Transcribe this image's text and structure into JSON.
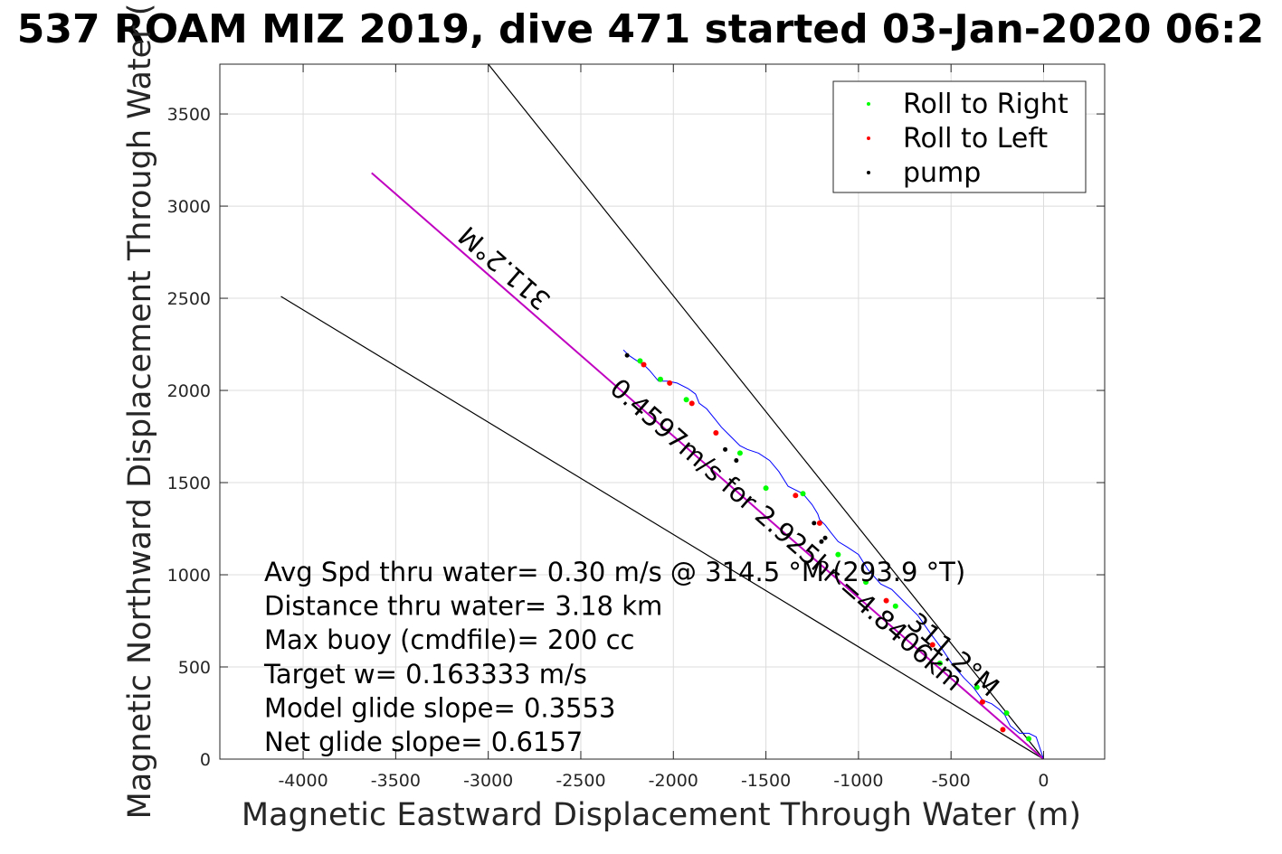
{
  "chart_data": {
    "type": "line",
    "title": "537 ROAM MIZ 2019, dive 471 started 03-Jan-2020 06:2",
    "xlabel": "Magnetic Eastward Displacement Through Water (m)",
    "ylabel": "Magnetic Northward Displacement Through Water (",
    "xlim": [
      -4450,
      330
    ],
    "ylim": [
      0,
      3770
    ],
    "xticks": [
      -4000,
      -3500,
      -3000,
      -2500,
      -2000,
      -1500,
      -1000,
      -500,
      0
    ],
    "xtick_labels": [
      "-4000",
      "-3500",
      "-3000",
      "-2500",
      "-2000",
      "-1500",
      "-1000",
      "-500",
      "0"
    ],
    "yticks": [
      0,
      500,
      1000,
      1500,
      2000,
      2500,
      3000,
      3500
    ],
    "ytick_labels": [
      "0",
      "500",
      "1000",
      "1500",
      "2000",
      "2500",
      "3000",
      "3500"
    ],
    "grid": true,
    "legend_position": "top-right",
    "legend": [
      {
        "label": "Roll to Right",
        "color": "#00ff00"
      },
      {
        "label": "Roll to Left",
        "color": "#ff0000"
      },
      {
        "label": "pump",
        "color": "#000000"
      }
    ],
    "lines": [
      {
        "kind": "black",
        "x": [
          0,
          -3000
        ],
        "y": [
          0,
          3770
        ]
      },
      {
        "kind": "black",
        "x": [
          0,
          -4120
        ],
        "y": [
          0,
          2510
        ]
      },
      {
        "kind": "magenta",
        "x": [
          0,
          -3630
        ],
        "y": [
          0,
          3180
        ]
      }
    ],
    "track": {
      "color": "#0000ff",
      "x": [
        0,
        -20,
        -40,
        -80,
        -130,
        -180,
        -210,
        -240,
        -280,
        -330,
        -380,
        -430,
        -490,
        -550,
        -610,
        -680,
        -750,
        -820,
        -880,
        -950,
        -1000,
        -1060,
        -1110,
        -1150,
        -1180,
        -1210,
        -1220,
        -1250,
        -1300,
        -1340,
        -1380,
        -1430,
        -1480,
        -1540,
        -1600,
        -1640,
        -1700,
        -1740,
        -1780,
        -1820,
        -1860,
        -1880,
        -1920,
        -1980,
        -2030,
        -2080,
        -2130,
        -2160,
        -2180,
        -2210,
        -2240,
        -2270
      ],
      "y": [
        0,
        60,
        120,
        140,
        140,
        180,
        240,
        270,
        300,
        320,
        390,
        440,
        510,
        600,
        680,
        780,
        850,
        920,
        950,
        1030,
        1110,
        1150,
        1180,
        1230,
        1270,
        1300,
        1330,
        1380,
        1440,
        1460,
        1480,
        1560,
        1620,
        1660,
        1680,
        1700,
        1760,
        1800,
        1850,
        1900,
        1930,
        1980,
        2010,
        2040,
        2050,
        2050,
        2110,
        2140,
        2150,
        2170,
        2190,
        2220
      ],
      "roll_right": [
        [
          -80,
          110
        ],
        [
          -200,
          250
        ],
        [
          -360,
          390
        ],
        [
          -560,
          520
        ],
        [
          -800,
          830
        ],
        [
          -960,
          960
        ],
        [
          -1110,
          1110
        ],
        [
          -1300,
          1440
        ],
        [
          -1500,
          1470
        ],
        [
          -1640,
          1660
        ],
        [
          -1930,
          1950
        ],
        [
          -2070,
          2060
        ],
        [
          -2180,
          2160
        ]
      ],
      "roll_left": [
        [
          -220,
          160
        ],
        [
          -330,
          310
        ],
        [
          -600,
          620
        ],
        [
          -850,
          860
        ],
        [
          -1210,
          1280
        ],
        [
          -1340,
          1430
        ],
        [
          -1770,
          1770
        ],
        [
          -1900,
          1930
        ],
        [
          -2020,
          2040
        ],
        [
          -2160,
          2140
        ]
      ],
      "pump": [
        [
          -2250,
          2190
        ],
        [
          -1720,
          1680
        ],
        [
          -1660,
          1620
        ],
        [
          -1240,
          1280
        ],
        [
          -1200,
          1180
        ],
        [
          -1180,
          1200
        ]
      ]
    },
    "line_labels": [
      {
        "text": "311.2°M",
        "x": -2880,
        "y": 2700,
        "angle": 221.2
      },
      {
        "text": "0.4597m/s for 2.925hr =4.8406km",
        "x": -1420,
        "y": 1180,
        "angle": 41.2
      },
      {
        "text": "311.2°M",
        "x": -520,
        "y": 530,
        "angle": 41.2
      }
    ],
    "annotations": [
      "Avg Spd thru water=  0.30 m/s @ 314.5 °M (293.9 °T)",
      "Distance thru water=  3.18 km",
      "Max buoy (cmdfile)= 200 cc",
      "Target w= 0.163333 m/s",
      "Model glide slope= 0.3553",
      "Net glide slope= 0.6157"
    ]
  }
}
